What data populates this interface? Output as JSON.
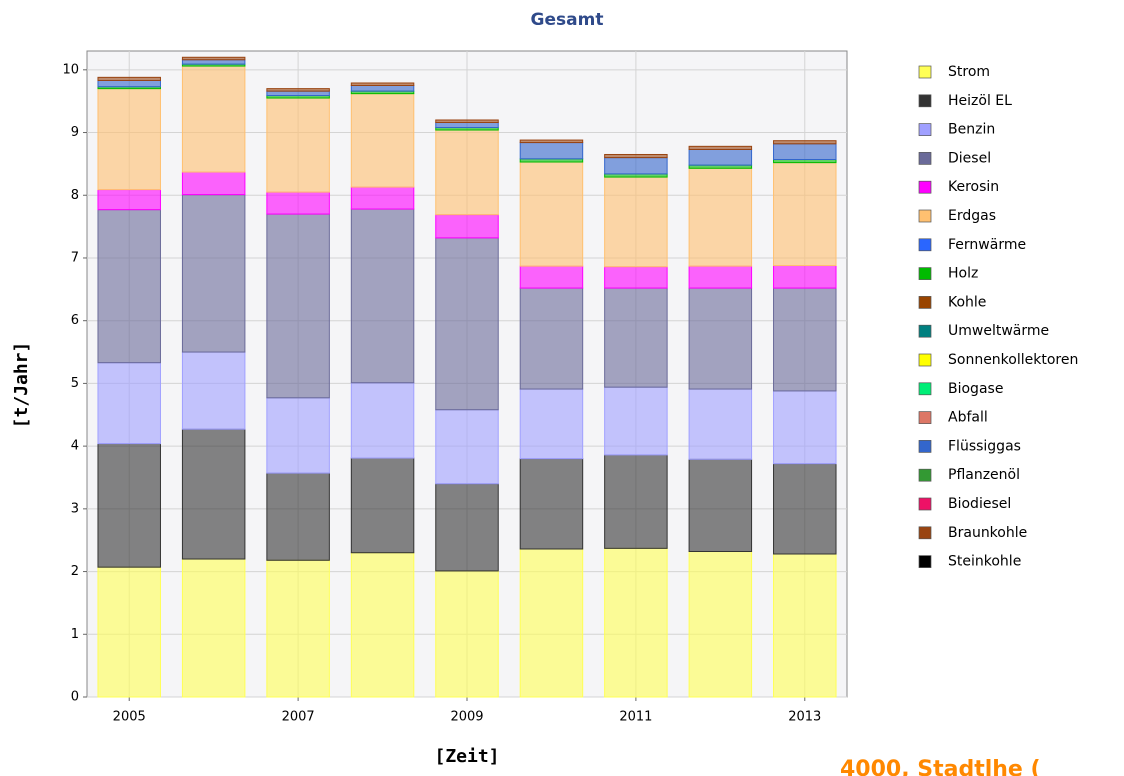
{
  "chart_data": {
    "type": "stacked_bar",
    "title": "Gesamt",
    "xlabel": "[Zeit]",
    "ylabel": "[t/Jahr]",
    "footer": "4000, Stadtlhe (",
    "x": [
      2005,
      2006,
      2007,
      2008,
      2009,
      2010,
      2011,
      2012,
      2013
    ],
    "xlim": [
      2004.5,
      2013.5
    ],
    "xticks": [
      2005,
      2007,
      2009,
      2011,
      2013
    ],
    "ylim": [
      0,
      10.3
    ],
    "yticks": [
      0,
      1,
      2,
      3,
      4,
      5,
      6,
      7,
      8,
      9,
      10
    ],
    "grid": true,
    "legend": "right",
    "series": [
      {
        "name": "Strom",
        "color": "#ffff55",
        "values": [
          2.07,
          2.2,
          2.18,
          2.3,
          2.01,
          2.36,
          2.37,
          2.32,
          2.28
        ]
      },
      {
        "name": "Heizöl EL",
        "color": "#333333",
        "values": [
          1.97,
          2.07,
          1.39,
          1.51,
          1.39,
          1.44,
          1.49,
          1.47,
          1.44
        ]
      },
      {
        "name": "Benzin",
        "color": "#a0a0ff",
        "values": [
          1.29,
          1.23,
          1.2,
          1.2,
          1.18,
          1.11,
          1.08,
          1.12,
          1.16
        ]
      },
      {
        "name": "Diesel",
        "color": "#6a6a99",
        "values": [
          2.44,
          2.51,
          2.93,
          2.77,
          2.74,
          1.61,
          1.58,
          1.61,
          1.64
        ]
      },
      {
        "name": "Kerosin",
        "color": "#ff00ff",
        "values": [
          0.32,
          0.36,
          0.35,
          0.35,
          0.37,
          0.35,
          0.34,
          0.35,
          0.36
        ]
      },
      {
        "name": "Erdgas",
        "color": "#ffc070",
        "values": [
          1.61,
          1.69,
          1.5,
          1.49,
          1.35,
          1.66,
          1.43,
          1.56,
          1.64
        ]
      },
      {
        "name": "Fernwärme",
        "color": "#2a66ff",
        "values": [
          0,
          0,
          0,
          0,
          0,
          0,
          0,
          0,
          0
        ]
      },
      {
        "name": "Holz",
        "color": "#00bb00",
        "values": [
          0.03,
          0.03,
          0.04,
          0.04,
          0.04,
          0.05,
          0.05,
          0.05,
          0.05
        ]
      },
      {
        "name": "Kohle",
        "color": "#994400",
        "values": [
          0,
          0,
          0,
          0,
          0,
          0,
          0,
          0,
          0
        ]
      },
      {
        "name": "Umweltwärme",
        "color": "#008080",
        "values": [
          0,
          0,
          0,
          0,
          0,
          0,
          0,
          0,
          0
        ]
      },
      {
        "name": "Sonnenkollektoren",
        "color": "#ffff00",
        "values": [
          0,
          0,
          0,
          0,
          0,
          0,
          0,
          0,
          0
        ]
      },
      {
        "name": "Biogase",
        "color": "#00ee77",
        "values": [
          0,
          0,
          0,
          0,
          0,
          0,
          0,
          0,
          0
        ]
      },
      {
        "name": "Abfall",
        "color": "#dd7766",
        "values": [
          0,
          0,
          0,
          0,
          0,
          0,
          0,
          0,
          0
        ]
      },
      {
        "name": "Flüssiggas",
        "color": "#3366cc",
        "values": [
          0.1,
          0.07,
          0.07,
          0.09,
          0.08,
          0.26,
          0.26,
          0.25,
          0.25
        ]
      },
      {
        "name": "Pflanzenöl",
        "color": "#339933",
        "values": [
          0,
          0,
          0,
          0,
          0,
          0,
          0,
          0,
          0
        ]
      },
      {
        "name": "Biodiesel",
        "color": "#ee1166",
        "values": [
          0,
          0,
          0,
          0,
          0,
          0,
          0,
          0,
          0
        ]
      },
      {
        "name": "Braunkohle",
        "color": "#994411",
        "values": [
          0.05,
          0.04,
          0.04,
          0.04,
          0.04,
          0.04,
          0.05,
          0.05,
          0.05
        ]
      },
      {
        "name": "Steinkohle",
        "color": "#000000",
        "values": [
          0,
          0,
          0,
          0,
          0,
          0,
          0,
          0,
          0
        ]
      }
    ]
  }
}
